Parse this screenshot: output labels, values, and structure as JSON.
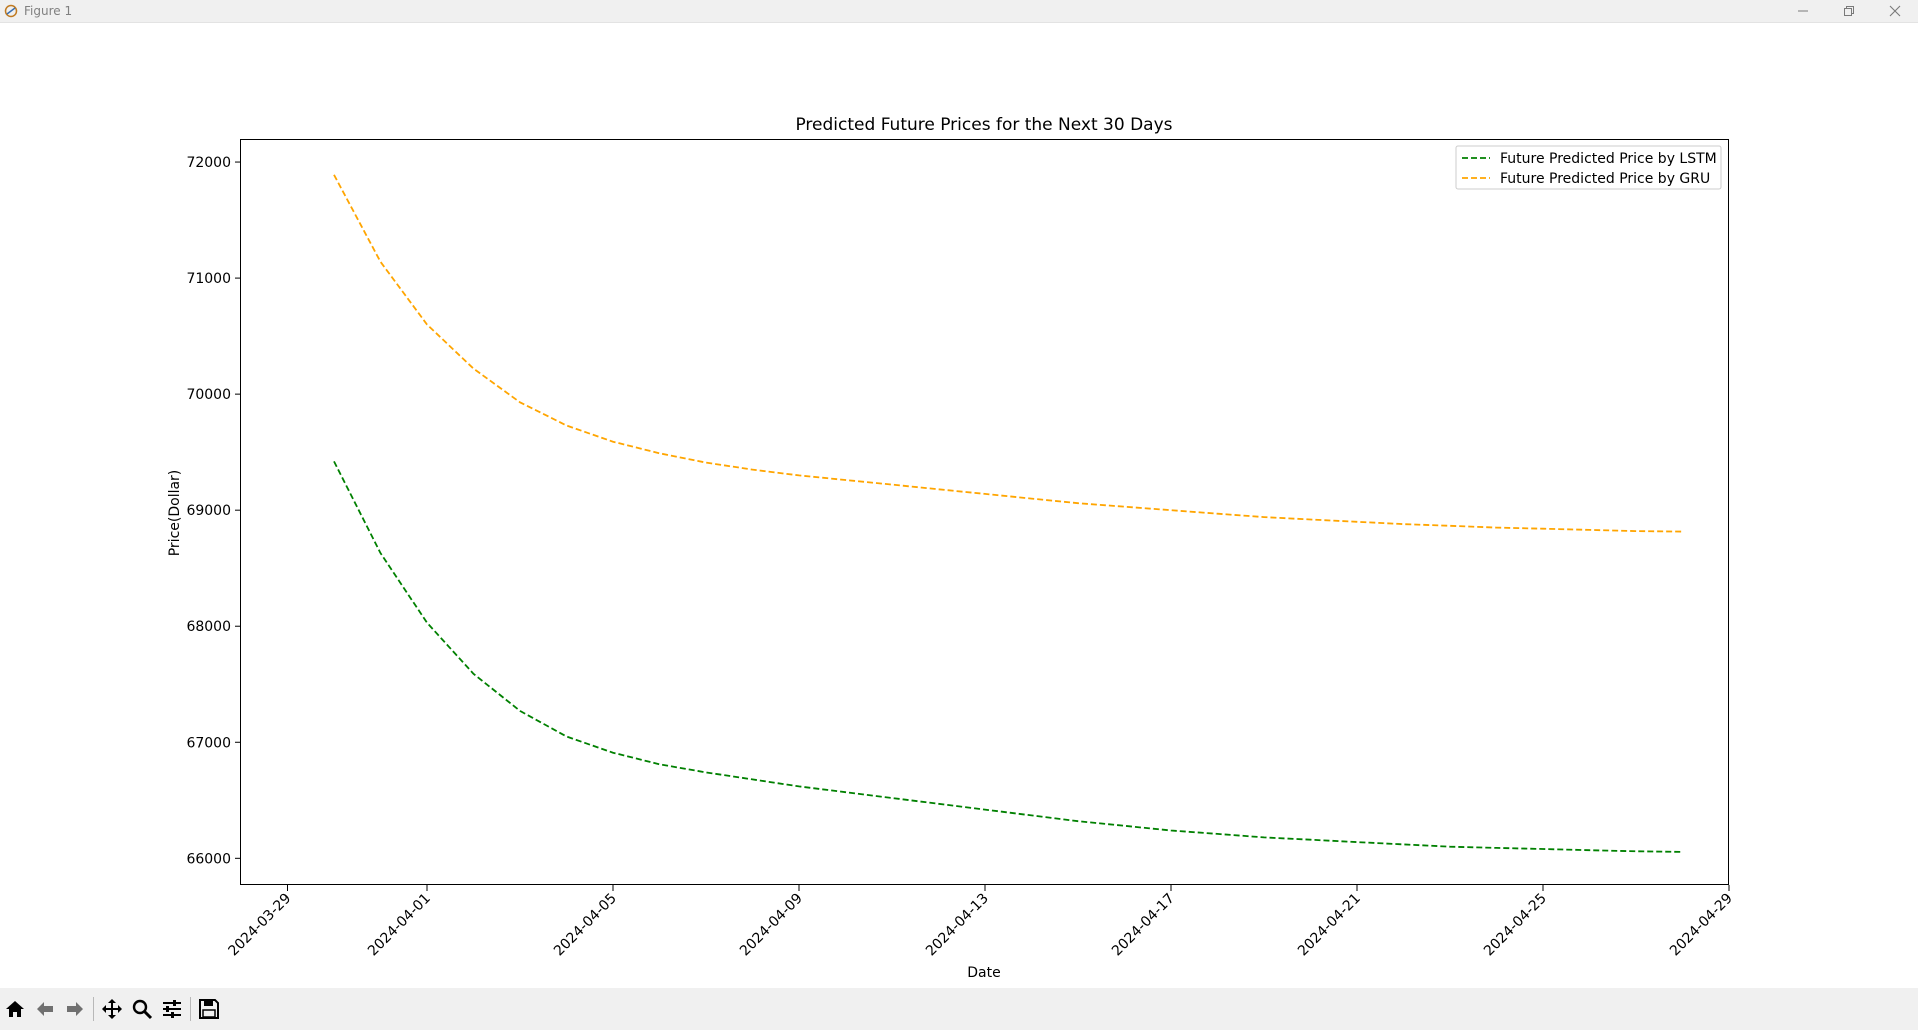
{
  "window": {
    "title": "Figure 1",
    "controls": [
      "minimize-icon",
      "restore-icon",
      "close-icon"
    ]
  },
  "toolbar": {
    "buttons": [
      "home-icon",
      "back-icon",
      "forward-icon",
      "pan-icon",
      "zoom-icon",
      "configure-subplots-icon",
      "save-icon"
    ]
  },
  "chart_data": {
    "type": "line",
    "title": "Predicted Future Prices for the Next 30 Days",
    "xlabel": "Date",
    "ylabel": "Price(Dollar)",
    "x": [
      "2024-03-30",
      "2024-03-31",
      "2024-04-01",
      "2024-04-02",
      "2024-04-03",
      "2024-04-04",
      "2024-04-05",
      "2024-04-06",
      "2024-04-07",
      "2024-04-08",
      "2024-04-09",
      "2024-04-10",
      "2024-04-11",
      "2024-04-12",
      "2024-04-13",
      "2024-04-14",
      "2024-04-15",
      "2024-04-16",
      "2024-04-17",
      "2024-04-18",
      "2024-04-19",
      "2024-04-20",
      "2024-04-21",
      "2024-04-22",
      "2024-04-23",
      "2024-04-24",
      "2024-04-25",
      "2024-04-26",
      "2024-04-27",
      "2024-04-28"
    ],
    "series": [
      {
        "name": "Future Predicted Price by LSTM",
        "color": "#008000",
        "linestyle": "dashed",
        "values": [
          69420,
          68630,
          68030,
          67590,
          67270,
          67050,
          66910,
          66810,
          66740,
          66680,
          66620,
          66570,
          66520,
          66470,
          66420,
          66370,
          66320,
          66280,
          66240,
          66210,
          66180,
          66160,
          66140,
          66120,
          66100,
          66090,
          66080,
          66070,
          66060,
          66055
        ]
      },
      {
        "name": "Future Predicted Price by GRU",
        "color": "#ffa500",
        "linestyle": "dashed",
        "values": [
          71890,
          71140,
          70600,
          70220,
          69930,
          69730,
          69590,
          69490,
          69410,
          69350,
          69300,
          69260,
          69220,
          69180,
          69140,
          69100,
          69060,
          69030,
          69000,
          68970,
          68940,
          68920,
          68900,
          68880,
          68865,
          68850,
          68840,
          68830,
          68820,
          68815
        ]
      }
    ],
    "x_ticks": [
      "2024-03-29",
      "2024-04-01",
      "2024-04-05",
      "2024-04-09",
      "2024-04-13",
      "2024-04-17",
      "2024-04-21",
      "2024-04-25",
      "2024-04-29"
    ],
    "y_ticks": [
      66000,
      67000,
      68000,
      69000,
      70000,
      71000,
      72000
    ],
    "xlim": [
      "2024-03-28",
      "2024-04-29"
    ],
    "ylim": [
      65770,
      72190
    ],
    "grid": false,
    "legend_position": "top-right"
  }
}
